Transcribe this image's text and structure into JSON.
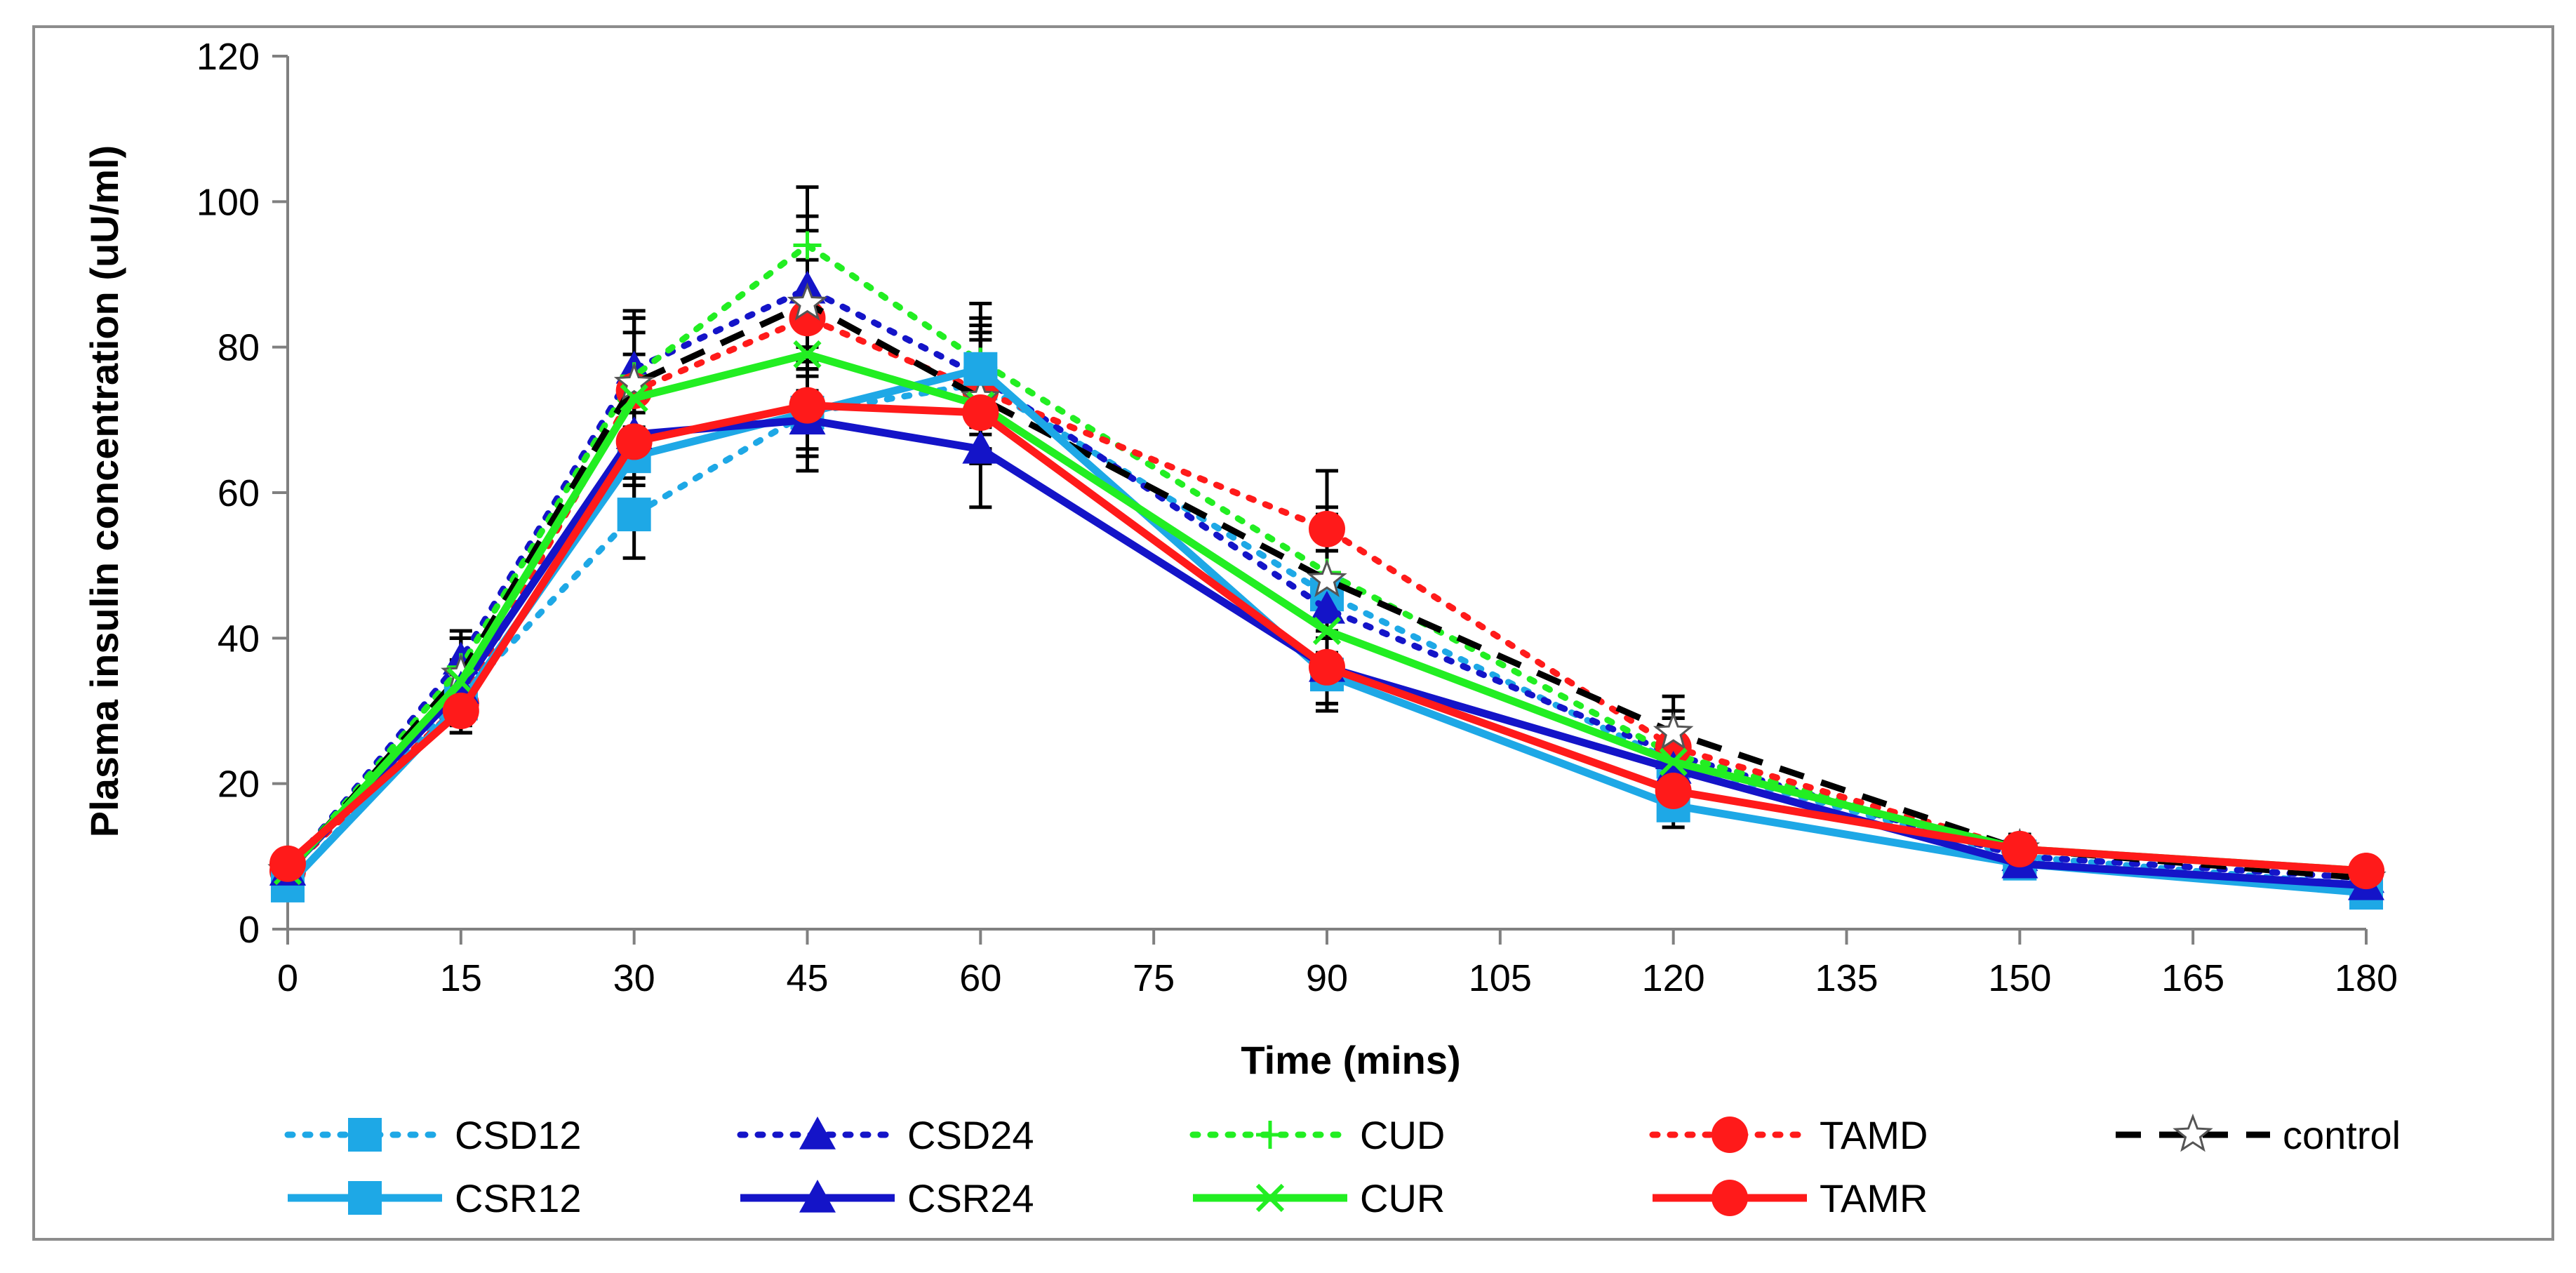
{
  "chart_data": {
    "type": "line",
    "title": "",
    "xlabel": "Time (mins)",
    "ylabel": "Plasma insulin concentration (uU/ml)",
    "xlim": [
      0,
      180
    ],
    "ylim": [
      0,
      120
    ],
    "x_ticks": [
      0,
      15,
      30,
      45,
      60,
      75,
      90,
      105,
      120,
      135,
      150,
      165,
      180
    ],
    "y_ticks": [
      0,
      20,
      40,
      60,
      80,
      100,
      120
    ],
    "grid": false,
    "legend_position": "bottom",
    "x": [
      0,
      15,
      30,
      45,
      60,
      90,
      120,
      150,
      180
    ],
    "series": [
      {
        "name": "CSD12",
        "color": "#1EA8E6",
        "dash": "dotted",
        "marker": "square",
        "values": [
          6,
          32,
          57,
          71,
          75,
          46,
          23,
          10,
          6
        ],
        "errors": [
          0,
          3,
          6,
          6,
          6,
          6,
          4,
          2,
          1
        ]
      },
      {
        "name": "CSD24",
        "color": "#1414C8",
        "dash": "dotted",
        "marker": "triangle",
        "values": [
          8,
          37,
          77,
          88,
          76,
          44,
          24,
          10,
          7
        ],
        "errors": [
          0,
          4,
          8,
          8,
          8,
          8,
          5,
          2,
          1
        ]
      },
      {
        "name": "CUD",
        "color": "#22EE22",
        "dash": "dotted",
        "marker": "plus",
        "values": [
          8,
          36,
          76,
          94,
          78,
          49,
          24,
          11,
          8
        ],
        "errors": [
          0,
          4,
          8,
          8,
          8,
          8,
          5,
          2,
          1
        ]
      },
      {
        "name": "TAMD",
        "color": "#FF1A1A",
        "dash": "dotted",
        "marker": "circle",
        "values": [
          8,
          31,
          74,
          84,
          74,
          55,
          25,
          11,
          8
        ],
        "errors": [
          0,
          4,
          8,
          8,
          8,
          8,
          5,
          2,
          1
        ]
      },
      {
        "name": "control",
        "color": "#000000",
        "dash": "dashed",
        "marker": "star",
        "values": [
          8,
          35,
          75,
          86,
          73,
          48,
          27,
          11,
          7
        ],
        "errors": [
          0,
          5,
          9,
          12,
          9,
          10,
          5,
          2,
          1
        ]
      },
      {
        "name": "CSR12",
        "color": "#1EA8E6",
        "dash": "solid",
        "marker": "square",
        "values": [
          6,
          31,
          65,
          71,
          77,
          35,
          17,
          9,
          5
        ],
        "errors": [
          0,
          3,
          6,
          6,
          6,
          5,
          3,
          2,
          1
        ]
      },
      {
        "name": "CSR24",
        "color": "#1414C8",
        "dash": "solid",
        "marker": "triangle",
        "values": [
          8,
          33,
          68,
          70,
          66,
          36,
          22,
          9,
          6
        ],
        "errors": [
          0,
          3,
          6,
          7,
          8,
          5,
          3,
          2,
          1
        ]
      },
      {
        "name": "CUR",
        "color": "#22EE22",
        "dash": "solid",
        "marker": "x",
        "values": [
          8,
          34,
          73,
          79,
          72,
          41,
          23,
          11,
          8
        ],
        "errors": [
          0,
          3,
          6,
          6,
          6,
          5,
          3,
          2,
          1
        ]
      },
      {
        "name": "TAMR",
        "color": "#FF1A1A",
        "dash": "solid",
        "marker": "circle",
        "values": [
          9,
          30,
          67,
          72,
          71,
          36,
          19,
          11,
          8
        ],
        "errors": [
          0,
          3,
          6,
          6,
          6,
          5,
          3,
          2,
          1
        ]
      }
    ],
    "legend_rows": [
      [
        "CSD12",
        "CSD24",
        "CUD",
        "TAMD",
        "control"
      ],
      [
        "CSR12",
        "CSR24",
        "CUR",
        "TAMR"
      ]
    ]
  }
}
